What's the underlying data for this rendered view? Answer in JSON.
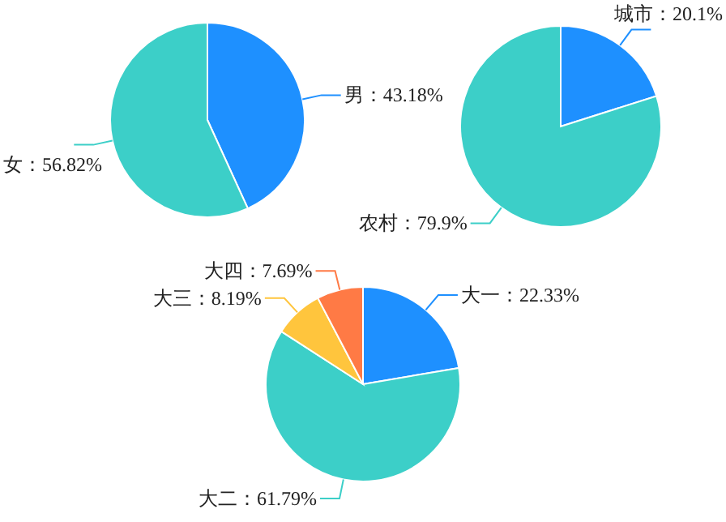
{
  "chart_data": [
    {
      "type": "pie",
      "categories": [
        "男",
        "女"
      ],
      "values": [
        43.18,
        56.82
      ],
      "colors": [
        "#1e90ff",
        "#3ccfc8"
      ],
      "value_labels": [
        "：43.18%",
        "：56.82%"
      ]
    },
    {
      "type": "pie",
      "categories": [
        "城市",
        "农村"
      ],
      "values": [
        20.1,
        79.9
      ],
      "colors": [
        "#1e90ff",
        "#3ccfc8"
      ],
      "value_labels": [
        "：20.1%",
        "：79.9%"
      ]
    },
    {
      "type": "pie",
      "categories": [
        "大一",
        "大二",
        "大三",
        "大四"
      ],
      "values": [
        22.33,
        61.79,
        8.19,
        7.69
      ],
      "colors": [
        "#1e90ff",
        "#3ccfc8",
        "#ffc53d",
        "#ff7a45"
      ],
      "value_labels": [
        "：22.33%",
        "：61.79%",
        "：8.19%",
        "：7.69%"
      ]
    }
  ]
}
